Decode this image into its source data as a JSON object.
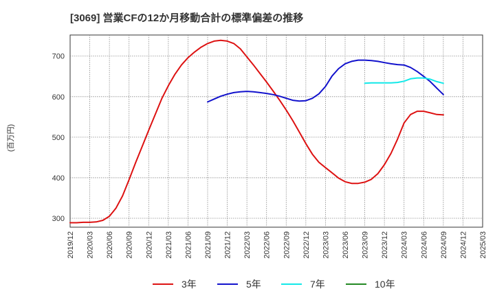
{
  "chart_data": {
    "type": "line",
    "title": "[3069]  営業CFの12か月移動合計の標準偏差の推移",
    "ylabel": "(百万円)",
    "xlabel": "",
    "ylim": [
      278,
      752
    ],
    "yticks": [
      300,
      400,
      500,
      600,
      700
    ],
    "x_ticks": [
      "2019/12",
      "2020/03",
      "2020/06",
      "2020/09",
      "2020/12",
      "2021/03",
      "2021/06",
      "2021/09",
      "2021/12",
      "2022/03",
      "2022/06",
      "2022/09",
      "2022/12",
      "2023/03",
      "2023/06",
      "2023/09",
      "2023/12",
      "2024/03",
      "2024/06",
      "2024/09",
      "2024/12",
      "2025/03"
    ],
    "grid": true,
    "legend_position": "bottom",
    "series": [
      {
        "name": "3年",
        "color": "#dd1111",
        "x": [
          "2019/12",
          "2020/01",
          "2020/02",
          "2020/03",
          "2020/04",
          "2020/05",
          "2020/06",
          "2020/07",
          "2020/08",
          "2020/09",
          "2020/10",
          "2020/11",
          "2020/12",
          "2021/01",
          "2021/02",
          "2021/03",
          "2021/04",
          "2021/05",
          "2021/06",
          "2021/07",
          "2021/08",
          "2021/09",
          "2021/10",
          "2021/11",
          "2021/12",
          "2022/01",
          "2022/02",
          "2022/03",
          "2022/04",
          "2022/05",
          "2022/06",
          "2022/07",
          "2022/08",
          "2022/09",
          "2022/10",
          "2022/11",
          "2022/12",
          "2023/01",
          "2023/02",
          "2023/03",
          "2023/04",
          "2023/05",
          "2023/06",
          "2023/07",
          "2023/08",
          "2023/09",
          "2023/10",
          "2023/11",
          "2023/12",
          "2024/01",
          "2024/02",
          "2024/03",
          "2024/04",
          "2024/05",
          "2024/06",
          "2024/07",
          "2024/08",
          "2024/09"
        ],
        "values": [
          289,
          289,
          290,
          290,
          291,
          295,
          305,
          325,
          355,
          395,
          437,
          477,
          517,
          556,
          595,
          627,
          655,
          678,
          696,
          710,
          722,
          731,
          737,
          739,
          737,
          731,
          718,
          698,
          678,
          657,
          636,
          614,
          591,
          567,
          541,
          513,
          484,
          458,
          438,
          425,
          412,
          399,
          390,
          386,
          386,
          389,
          396,
          410,
          432,
          460,
          495,
          535,
          556,
          564,
          564,
          560,
          556,
          555
        ]
      },
      {
        "name": "5年",
        "color": "#1111cc",
        "x": [
          "2021/09",
          "2021/10",
          "2021/11",
          "2021/12",
          "2022/01",
          "2022/02",
          "2022/03",
          "2022/04",
          "2022/05",
          "2022/06",
          "2022/07",
          "2022/08",
          "2022/09",
          "2022/10",
          "2022/11",
          "2022/12",
          "2023/01",
          "2023/02",
          "2023/03",
          "2023/04",
          "2023/05",
          "2023/06",
          "2023/07",
          "2023/08",
          "2023/09",
          "2023/10",
          "2023/11",
          "2023/12",
          "2024/01",
          "2024/02",
          "2024/03",
          "2024/04",
          "2024/05",
          "2024/06",
          "2024/07",
          "2024/08",
          "2024/09"
        ],
        "values": [
          587,
          594,
          601,
          606,
          610,
          612,
          613,
          612,
          610,
          608,
          605,
          601,
          596,
          591,
          589,
          590,
          596,
          607,
          625,
          651,
          669,
          681,
          687,
          690,
          690,
          689,
          687,
          684,
          681,
          679,
          678,
          672,
          662,
          650,
          637,
          621,
          605
        ]
      },
      {
        "name": "7年",
        "color": "#11e8e8",
        "x": [
          "2023/09",
          "2023/10",
          "2023/11",
          "2023/12",
          "2024/01",
          "2024/02",
          "2024/03",
          "2024/04",
          "2024/05",
          "2024/06",
          "2024/07",
          "2024/08",
          "2024/09"
        ],
        "values": [
          633,
          634,
          634,
          634,
          634,
          635,
          638,
          644,
          646,
          646,
          643,
          637,
          633
        ]
      },
      {
        "name": "10年",
        "color": "#228822",
        "x": [],
        "values": []
      }
    ]
  }
}
